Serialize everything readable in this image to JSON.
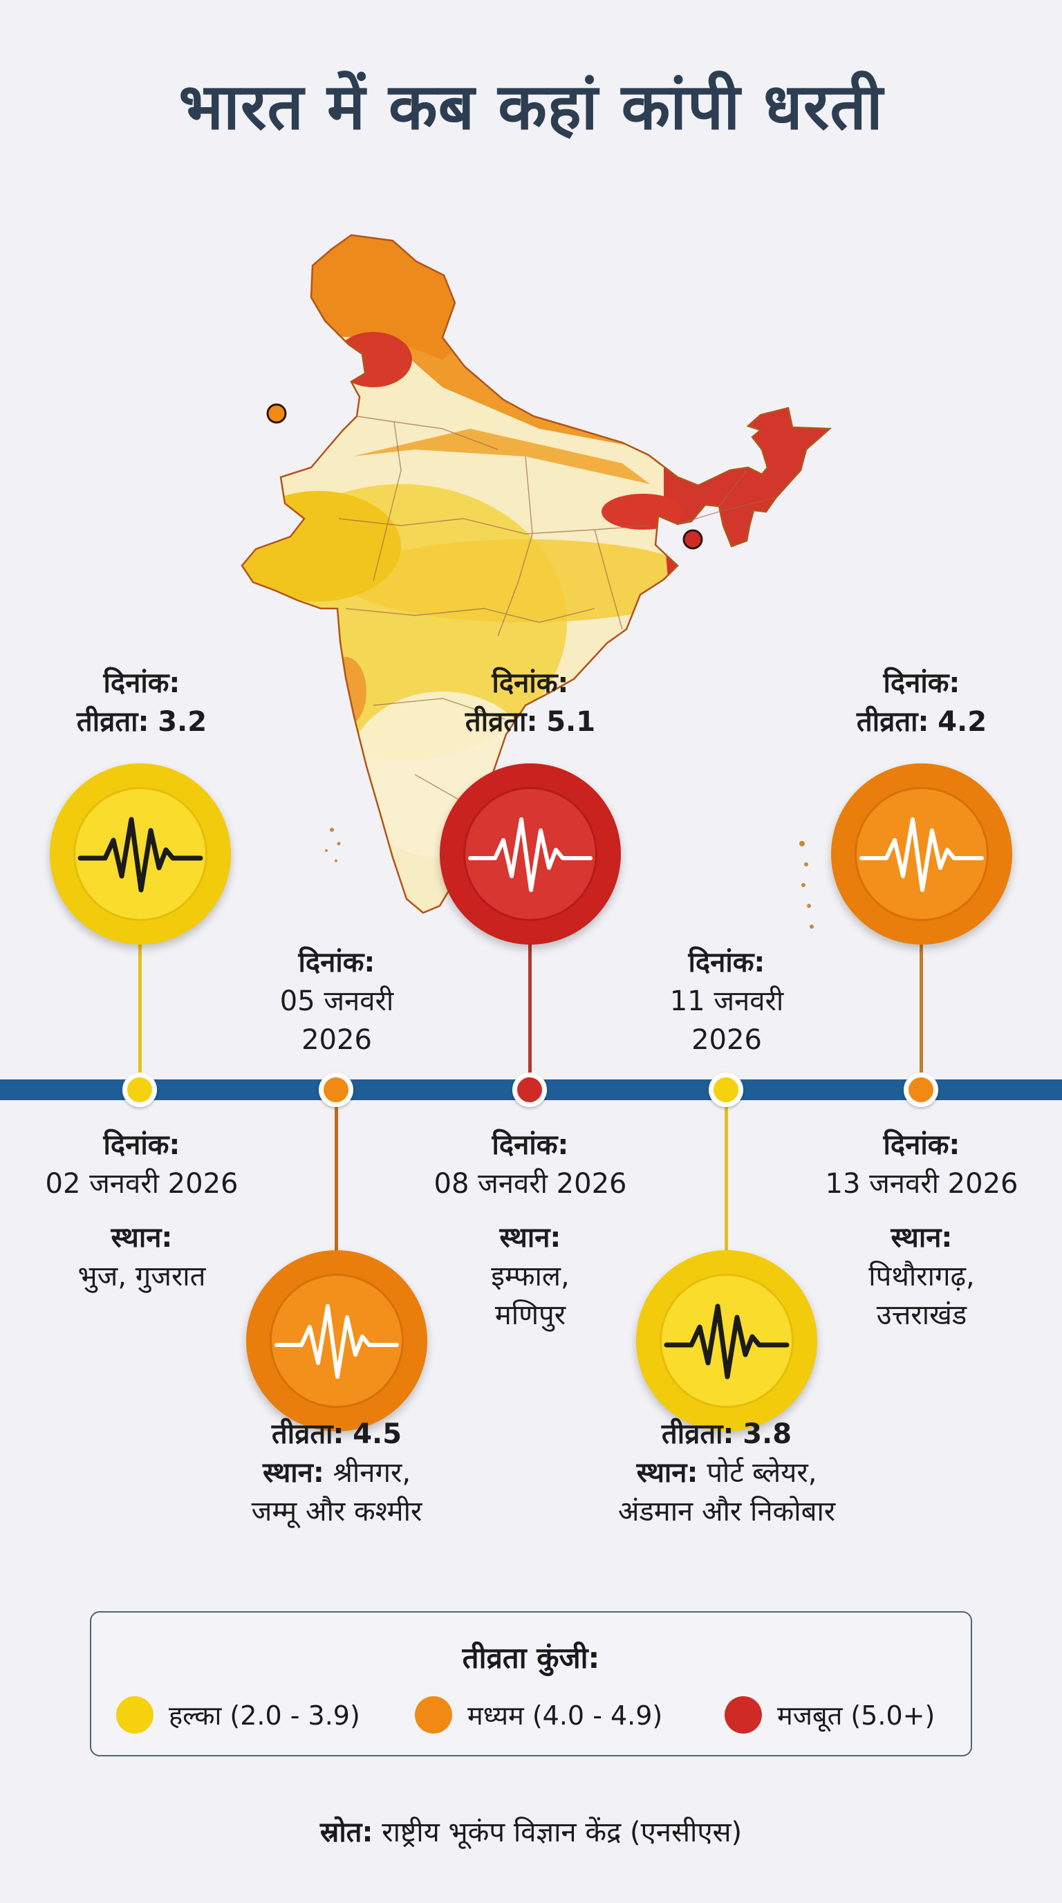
{
  "title": "भारत में कब कहां कांपी धरती",
  "colors": {
    "light": "#f5d10e",
    "medium": "#f08a14",
    "strong": "#cf2a26",
    "axis": "#1f5d97",
    "title": "#2d3e52"
  },
  "map": {
    "markers": [
      {
        "severity": "medium"
      },
      {
        "severity": "medium"
      },
      {
        "severity": "medium"
      },
      {
        "severity": "strong"
      },
      {
        "severity": "light"
      },
      {
        "severity": "light"
      },
      {
        "severity": "medium"
      },
      {
        "severity": "light"
      }
    ]
  },
  "events": [
    {
      "date_label": "दिनांक:",
      "date": "02 जनवरी 2026",
      "magnitude_label": "तीव्रता:",
      "magnitude": "3.2",
      "location_label": "स्थान:",
      "location": "भुज, गुजरात",
      "severity": "light",
      "icon": "seismograph-wave-icon"
    },
    {
      "date_label": "दिनांक:",
      "date_line1": "05 जनवरी",
      "date_line2": "2026",
      "magnitude_label": "तीव्रता:",
      "magnitude": "4.5",
      "location_label": "स्थान:",
      "location_line1": "श्रीनगर,",
      "location_line2": "जम्मू और कश्मीर",
      "severity": "medium",
      "icon": "seismograph-wave-icon"
    },
    {
      "date_label": "दिनांक:",
      "date": "08 जनवरी 2026",
      "magnitude_label": "तीव्रता:",
      "magnitude": "5.1",
      "location_label": "स्थान:",
      "location_line1": "इम्फाल,",
      "location_line2": "मणिपुर",
      "severity": "strong",
      "icon": "seismograph-wave-icon"
    },
    {
      "date_label": "दिनांक:",
      "date_line1": "11 जनवरी",
      "date_line2": "2026",
      "magnitude_label": "तीव्रता:",
      "magnitude": "3.8",
      "location_label": "स्थान:",
      "location_line1": "पोर्ट ब्लेयर,",
      "location_line2": "अंडमान और निकोबार",
      "severity": "light",
      "icon": "seismograph-wave-icon"
    },
    {
      "date_label": "दिनांक:",
      "date": "13 जनवरी 2026",
      "magnitude_label": "तीव्रता:",
      "magnitude": "4.2",
      "location_label": "स्थान:",
      "location_line1": "पिथौरागढ़,",
      "location_line2": "उत्तराखंड",
      "severity": "medium",
      "icon": "seismograph-wave-icon"
    }
  ],
  "legend": {
    "title": "तीव्रता कुंजी:",
    "items": [
      {
        "label": "हल्का (2.0 - 3.9)",
        "severity": "light"
      },
      {
        "label": "मध्यम (4.0 - 4.9)",
        "severity": "medium"
      },
      {
        "label": "मजबूत (5.0+)",
        "severity": "strong"
      }
    ]
  },
  "source": {
    "label": "स्रोत:",
    "text": "राष्ट्रीय भूकंप विज्ञान केंद्र (एनसीएस)"
  }
}
